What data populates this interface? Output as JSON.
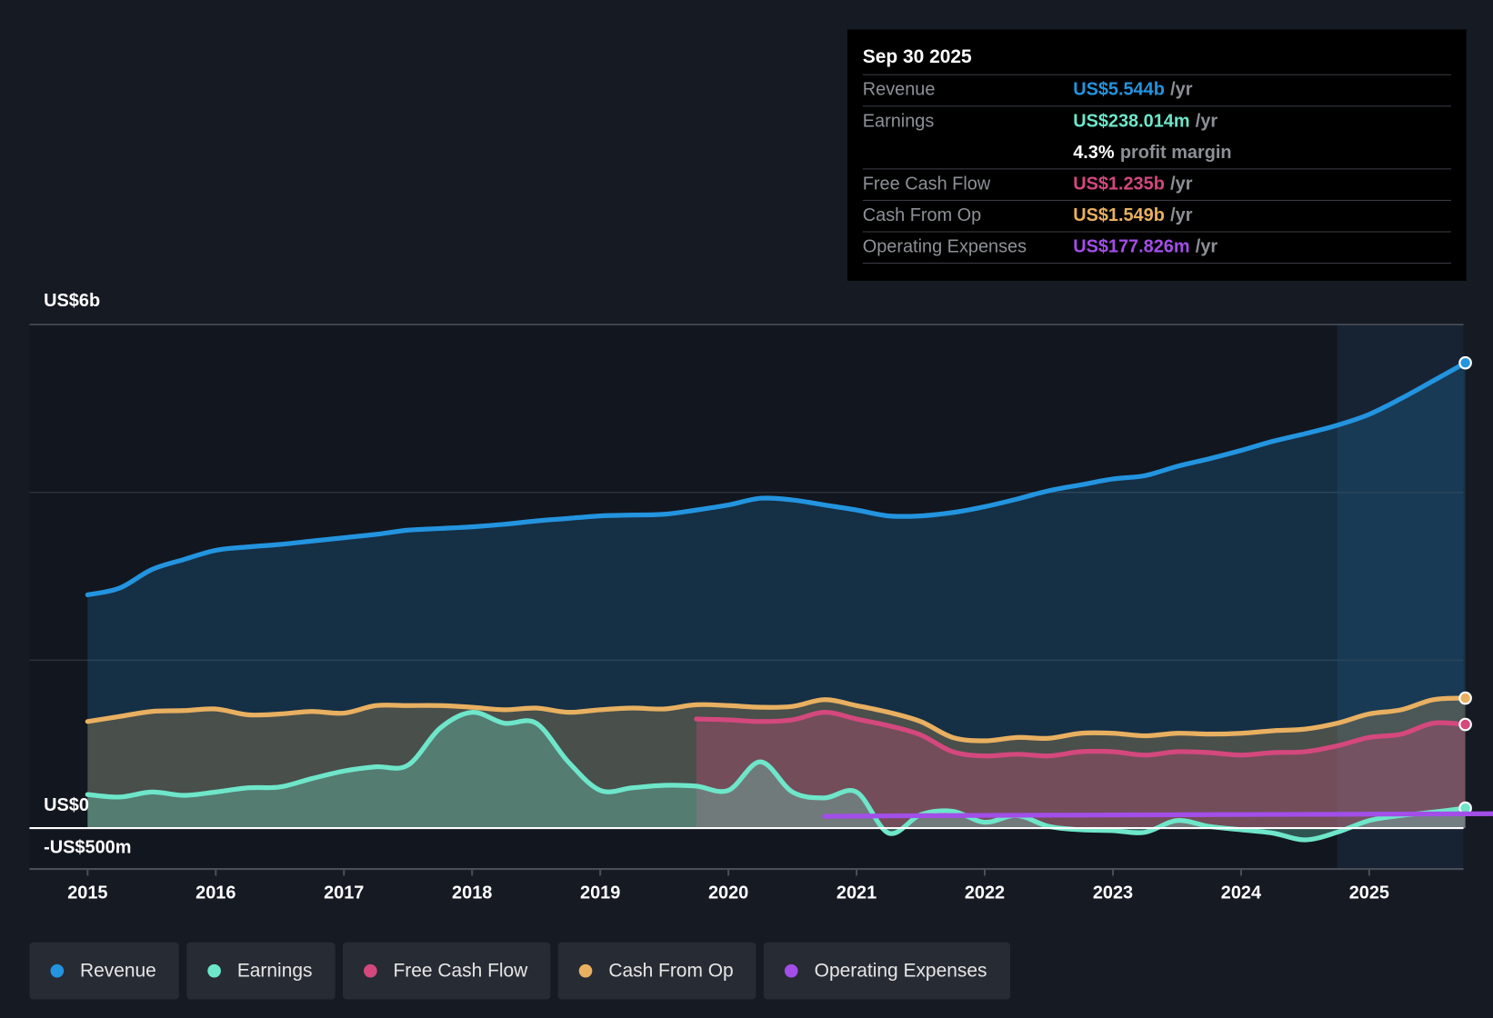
{
  "tooltip": {
    "date": "Sep 30 2025",
    "rows": [
      {
        "label": "Revenue",
        "value": "US$5.544b",
        "unit": "/yr",
        "color": "#2394df"
      },
      {
        "label": "Earnings",
        "value": "US$238.014m",
        "unit": "/yr",
        "color": "#6ee6c9"
      },
      {
        "label": "",
        "value": "4.3%",
        "unit": "profit margin",
        "color": "#ffffff"
      },
      {
        "label": "Free Cash Flow",
        "value": "US$1.235b",
        "unit": "/yr",
        "color": "#d4487e"
      },
      {
        "label": "Cash From Op",
        "value": "US$1.549b",
        "unit": "/yr",
        "color": "#e8b060"
      },
      {
        "label": "Operating Expenses",
        "value": "US$177.826m",
        "unit": "/yr",
        "color": "#a24ee8"
      }
    ]
  },
  "chart_data": {
    "type": "line",
    "title": "",
    "xlabel": "",
    "ylabel": "",
    "ylim": [
      -0.5,
      6
    ],
    "xlim": [
      2014.56,
      2025.75
    ],
    "y_tick_labels": [
      "US$6b",
      "US$0",
      "-US$500m"
    ],
    "y_ticks": [
      6,
      0,
      -0.5
    ],
    "x_ticks": [
      2015,
      2016,
      2017,
      2018,
      2019,
      2020,
      2021,
      2022,
      2023,
      2024,
      2025
    ],
    "x_tick_labels": [
      "2015",
      "2016",
      "2017",
      "2018",
      "2019",
      "2020",
      "2021",
      "2022",
      "2023",
      "2024",
      "2025"
    ],
    "forecast_shade_start": 2024.75,
    "units": "US$ billions",
    "series": [
      {
        "name": "Revenue",
        "color": "#2394df",
        "x0": 2015,
        "step": 0.25,
        "values": [
          2.78,
          2.86,
          3.08,
          3.2,
          3.31,
          3.35,
          3.38,
          3.42,
          3.46,
          3.5,
          3.55,
          3.57,
          3.59,
          3.62,
          3.66,
          3.69,
          3.72,
          3.73,
          3.74,
          3.79,
          3.85,
          3.93,
          3.91,
          3.85,
          3.79,
          3.72,
          3.72,
          3.76,
          3.83,
          3.92,
          4.02,
          4.09,
          4.16,
          4.2,
          4.31,
          4.4,
          4.5,
          4.61,
          4.7,
          4.8,
          4.93,
          5.12,
          5.33,
          5.544
        ]
      },
      {
        "name": "Cash From Op",
        "color": "#e8b060",
        "x0": 2015,
        "step": 0.25,
        "values": [
          1.27,
          1.33,
          1.39,
          1.4,
          1.42,
          1.35,
          1.36,
          1.39,
          1.37,
          1.46,
          1.46,
          1.46,
          1.44,
          1.41,
          1.43,
          1.38,
          1.41,
          1.43,
          1.42,
          1.47,
          1.46,
          1.44,
          1.45,
          1.53,
          1.46,
          1.38,
          1.27,
          1.08,
          1.04,
          1.08,
          1.07,
          1.13,
          1.13,
          1.1,
          1.13,
          1.12,
          1.13,
          1.16,
          1.18,
          1.25,
          1.36,
          1.41,
          1.53,
          1.549
        ]
      },
      {
        "name": "Free Cash Flow",
        "color": "#d4487e",
        "x0": 2019.75,
        "step": 0.25,
        "values": [
          1.3,
          1.29,
          1.27,
          1.29,
          1.38,
          1.3,
          1.22,
          1.11,
          0.91,
          0.86,
          0.88,
          0.86,
          0.91,
          0.91,
          0.87,
          0.91,
          0.9,
          0.87,
          0.9,
          0.91,
          0.98,
          1.08,
          1.12,
          1.25,
          1.235
        ]
      },
      {
        "name": "Earnings",
        "color": "#6ee6c9",
        "x0": 2015,
        "step": 0.25,
        "values": [
          0.4,
          0.37,
          0.43,
          0.39,
          0.43,
          0.48,
          0.49,
          0.59,
          0.68,
          0.73,
          0.75,
          1.19,
          1.38,
          1.25,
          1.25,
          0.79,
          0.45,
          0.48,
          0.51,
          0.5,
          0.45,
          0.79,
          0.43,
          0.36,
          0.43,
          -0.06,
          0.16,
          0.2,
          0.07,
          0.15,
          0.02,
          -0.02,
          -0.03,
          -0.05,
          0.09,
          0.02,
          -0.02,
          -0.06,
          -0.14,
          -0.05,
          0.09,
          0.15,
          0.19,
          0.238
        ]
      },
      {
        "name": "Operating Expenses",
        "color": "#a24ee8",
        "x0": 2020.75,
        "step": 1,
        "values": [
          0.14,
          0.15,
          0.155,
          0.16,
          0.165,
          0.17,
          0.178
        ]
      }
    ]
  },
  "legend": [
    {
      "label": "Revenue",
      "color": "#2394df"
    },
    {
      "label": "Earnings",
      "color": "#6ee6c9"
    },
    {
      "label": "Free Cash Flow",
      "color": "#d4487e"
    },
    {
      "label": "Cash From Op",
      "color": "#e8b060"
    },
    {
      "label": "Operating Expenses",
      "color": "#a24ee8"
    }
  ]
}
